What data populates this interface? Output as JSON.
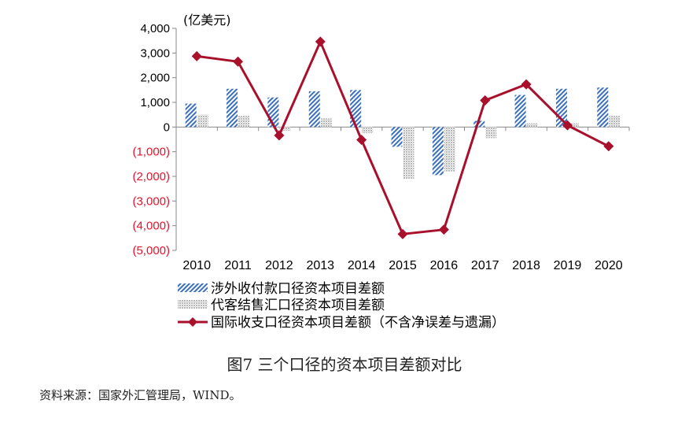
{
  "chart_data": {
    "type": "bar",
    "unit_label": "(亿美元)",
    "categories": [
      "2010",
      "2011",
      "2012",
      "2013",
      "2014",
      "2015",
      "2016",
      "2017",
      "2018",
      "2019",
      "2020"
    ],
    "ylim": [
      -5000,
      4000
    ],
    "yticks": [
      4000,
      3000,
      2000,
      1000,
      0,
      -1000,
      -2000,
      -3000,
      -4000,
      -5000
    ],
    "ytick_labels": [
      "4,000",
      "3,000",
      "2,000",
      "1,000",
      "0",
      "(1,000)",
      "(2,000)",
      "(3,000)",
      "(4,000)",
      "(5,000)"
    ],
    "negative_tick_color": "#e8102a",
    "grid": false,
    "legend_position": "bottom-left",
    "series": [
      {
        "name": "涉外收付款口径资本项目差额",
        "kind": "bar",
        "pattern": "hatch-blue",
        "color": "#3a6fbf",
        "values": [
          950,
          1550,
          1200,
          1450,
          1500,
          -800,
          -1950,
          250,
          1300,
          1550,
          1600
        ]
      },
      {
        "name": "代客结售汇口径资本项目差额",
        "kind": "bar",
        "pattern": "dots-gray",
        "color": "#bdbdbd",
        "values": [
          500,
          450,
          -150,
          350,
          -250,
          -2100,
          -1800,
          -450,
          150,
          150,
          450
        ]
      },
      {
        "name": "国际收支口径资本项目差额（不含净误差与遗漏）",
        "kind": "line",
        "marker": "diamond",
        "color": "#a8102c",
        "values": [
          2870,
          2650,
          -340,
          3460,
          -520,
          -4340,
          -4160,
          1080,
          1730,
          70,
          -780
        ]
      }
    ]
  },
  "caption": "图7  三个口径的资本项目差额对比",
  "source": "资料来源：国家外汇管理局，WIND。"
}
